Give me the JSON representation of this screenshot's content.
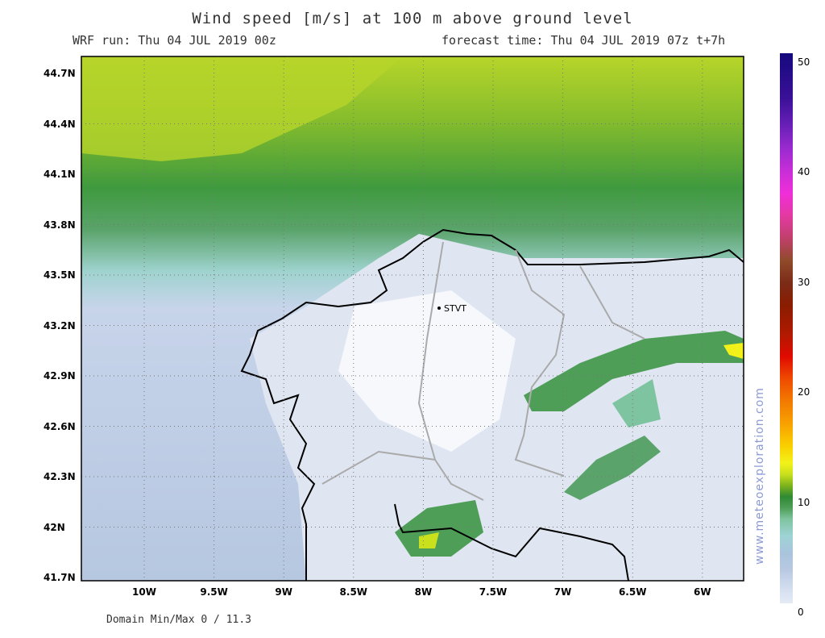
{
  "header": {
    "title": "Wind speed [m/s] at 100 m above ground level",
    "run": "WRF run: Thu 04 JUL 2019 00z",
    "forecast": "forecast time: Thu 04 JUL 2019 07z  t+7h"
  },
  "map": {
    "lat_labels": [
      "44.7N",
      "44.4N",
      "44.1N",
      "43.8N",
      "43.5N",
      "43.2N",
      "42.9N",
      "42.6N",
      "42.3N",
      "42N",
      "41.7N"
    ],
    "lon_labels": [
      "10W",
      "9.5W",
      "9W",
      "8.5W",
      "8W",
      "7.5W",
      "7W",
      "6.5W",
      "6W"
    ],
    "station": "STVT"
  },
  "colorbar": {
    "range": [
      0,
      51
    ],
    "ticks": [
      0,
      10,
      20,
      30,
      40,
      50
    ]
  },
  "footer": "Domain Min/Max 0 / 11.3",
  "watermark": "www.meteoexploration.com"
}
